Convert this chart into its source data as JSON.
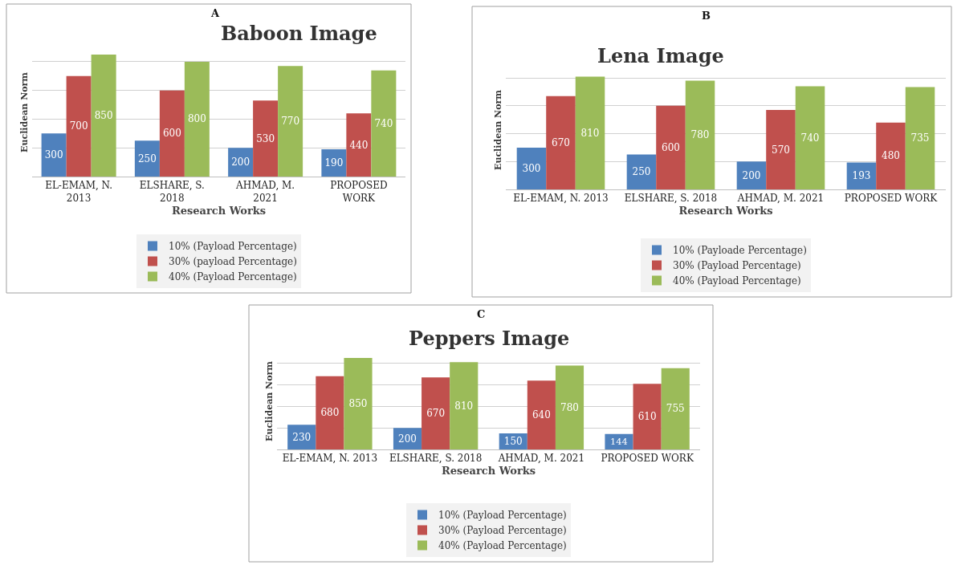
{
  "chart_data": [
    {
      "type": "bar",
      "title": "Baboon Image",
      "annotations": [
        "A"
      ],
      "xlabel": "Research Works",
      "ylabel": "Euclidean Norm",
      "categories": [
        "EL-EMAM, N. 2013",
        "ELSHARE, S. 2018",
        "AHMAD, M. 2021",
        "PROPOSED WORK"
      ],
      "series": [
        {
          "name": "10% (Payload Percentage)",
          "color": "#4f81bd",
          "values": [
            300,
            250,
            200,
            190
          ]
        },
        {
          "name": "30% (payload Percentage)",
          "color": "#c0504d",
          "values": [
            700,
            600,
            530,
            440
          ]
        },
        {
          "name": "40% (Payload Percentage)",
          "color": "#9bbb59",
          "values": [
            850,
            800,
            770,
            740
          ]
        }
      ],
      "data_labels": true,
      "grid": "y",
      "legend": "bottom"
    },
    {
      "type": "bar",
      "title": "Lena Image",
      "annotations": [
        "B"
      ],
      "xlabel": "Research Works",
      "ylabel": "Euclidean Norm",
      "categories": [
        "EL-EMAM, N. 2013",
        "ELSHARE, S. 2018",
        "AHMAD, M. 2021",
        "PROPOSED WORK"
      ],
      "series": [
        {
          "name": "10% (Payloade Percentage)",
          "color": "#4f81bd",
          "values": [
            300,
            250,
            200,
            193
          ]
        },
        {
          "name": "30% (Payload Percentage)",
          "color": "#c0504d",
          "values": [
            670,
            600,
            570,
            480
          ]
        },
        {
          "name": "40% (Payload Percentage)",
          "color": "#9bbb59",
          "values": [
            810,
            780,
            740,
            735
          ]
        }
      ],
      "data_labels": true,
      "grid": "y",
      "legend": "bottom"
    },
    {
      "type": "bar",
      "title": "Peppers Image",
      "annotations": [
        "C"
      ],
      "xlabel": "Research Works",
      "ylabel": "Euclidean Norm",
      "categories": [
        "EL-EMAM, N. 2013",
        "ELSHARE, S. 2018",
        "AHMAD, M. 2021",
        "PROPOSED WORK"
      ],
      "series": [
        {
          "name": "10% (Payload Percentage)",
          "color": "#4f81bd",
          "values": [
            230,
            200,
            150,
            144
          ]
        },
        {
          "name": "30% (Payload Percentage)",
          "color": "#c0504d",
          "values": [
            680,
            670,
            640,
            610
          ]
        },
        {
          "name": "40% (Payload Percentage)",
          "color": "#9bbb59",
          "values": [
            850,
            810,
            780,
            755
          ]
        }
      ],
      "data_labels": true,
      "grid": "y",
      "legend": "bottom"
    }
  ]
}
